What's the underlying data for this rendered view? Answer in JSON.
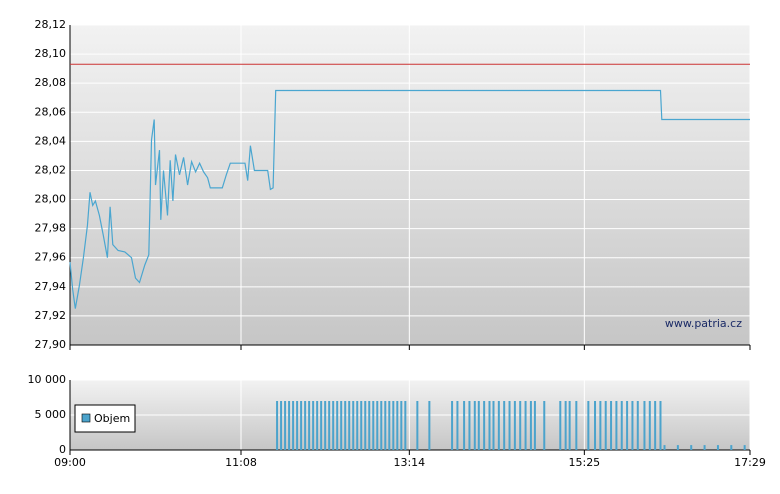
{
  "chart_data": [
    {
      "type": "line",
      "annotations": [
        "www.patria.cz"
      ],
      "x": [
        "09:00",
        "09:02",
        "09:04",
        "09:07",
        "09:10",
        "09:13",
        "09:15",
        "09:17",
        "09:19",
        "09:22",
        "09:25",
        "09:28",
        "09:30",
        "09:32",
        "09:36",
        "09:41",
        "09:46",
        "09:49",
        "09:52",
        "09:56",
        "09:59",
        "10:01",
        "10:03",
        "10:04",
        "10:07",
        "10:08",
        "10:10",
        "10:13",
        "10:15",
        "10:17",
        "10:19",
        "10:22",
        "10:25",
        "10:28",
        "10:31",
        "10:34",
        "10:37",
        "10:40",
        "10:43",
        "10:45",
        "10:54",
        "10:57",
        "11:00",
        "11:11",
        "11:13",
        "11:15",
        "11:18",
        "11:28",
        "11:30",
        "11:32",
        "11:34",
        "16:22",
        "16:23",
        "17:29"
      ],
      "values": [
        27.957,
        27.938,
        27.925,
        27.941,
        27.96,
        27.982,
        28.005,
        27.996,
        27.999,
        27.989,
        27.975,
        27.96,
        27.995,
        27.969,
        27.965,
        27.964,
        27.96,
        27.946,
        27.943,
        27.955,
        27.962,
        28.041,
        28.055,
        28.01,
        28.034,
        27.986,
        28.02,
        27.989,
        28.027,
        27.999,
        28.031,
        28.017,
        28.029,
        28.01,
        28.026,
        28.019,
        28.025,
        28.019,
        28.015,
        28.008,
        28.008,
        28.017,
        28.025,
        28.025,
        28.013,
        28.037,
        28.02,
        28.02,
        28.007,
        28.008,
        28.075,
        28.075,
        28.055,
        28.055
      ],
      "color": "#4aa6d0",
      "reference_line": 28.093,
      "reference_color": "#cc3333",
      "xlim": [
        "09:00",
        "17:29"
      ],
      "xticks": [
        "09:00",
        "11:08",
        "13:14",
        "15:25",
        "17:29"
      ],
      "ylim": [
        27.9,
        28.12
      ],
      "yticks": [
        {
          "value": 27.9,
          "label": "27,90"
        },
        {
          "value": 27.92,
          "label": "27,92"
        },
        {
          "value": 27.94,
          "label": "27,94"
        },
        {
          "value": 27.96,
          "label": "27,96"
        },
        {
          "value": 27.98,
          "label": "27,98"
        },
        {
          "value": 28.0,
          "label": "28,00"
        },
        {
          "value": 28.02,
          "label": "28,02"
        },
        {
          "value": 28.04,
          "label": "28,04"
        },
        {
          "value": 28.06,
          "label": "28,06"
        },
        {
          "value": 28.08,
          "label": "28,08"
        },
        {
          "value": 28.1,
          "label": "28,10"
        },
        {
          "value": 28.12,
          "label": "28,12"
        }
      ],
      "grid": true
    },
    {
      "type": "bar",
      "x": [
        "11:35",
        "11:38",
        "11:41",
        "11:44",
        "11:47",
        "11:50",
        "11:53",
        "11:56",
        "11:59",
        "12:02",
        "12:05",
        "12:08",
        "12:11",
        "12:14",
        "12:17",
        "12:20",
        "12:23",
        "12:26",
        "12:29",
        "12:32",
        "12:35",
        "12:38",
        "12:41",
        "12:44",
        "12:47",
        "12:50",
        "12:53",
        "12:56",
        "12:59",
        "13:02",
        "13:05",
        "13:08",
        "13:11",
        "13:20",
        "13:29",
        "13:46",
        "13:50",
        "13:55",
        "13:59",
        "14:03",
        "14:06",
        "14:10",
        "14:14",
        "14:17",
        "14:21",
        "14:25",
        "14:29",
        "14:33",
        "14:37",
        "14:41",
        "14:45",
        "14:48",
        "14:55",
        "15:07",
        "15:11",
        "15:14",
        "15:19",
        "15:28",
        "15:33",
        "15:37",
        "15:41",
        "15:45",
        "15:49",
        "15:53",
        "15:57",
        "16:01",
        "16:05",
        "16:10",
        "16:14",
        "16:18",
        "16:22",
        "16:25",
        "16:35",
        "16:45",
        "16:55",
        "17:05",
        "17:15",
        "17:25"
      ],
      "series": [
        {
          "name": "Objem",
          "color": "#4ba3cc",
          "values": [
            7000,
            7000,
            7000,
            7000,
            7000,
            7000,
            7000,
            7000,
            7000,
            7000,
            7000,
            7000,
            7000,
            7000,
            7000,
            7000,
            7000,
            7000,
            7000,
            7000,
            7000,
            7000,
            7000,
            7000,
            7000,
            7000,
            7000,
            7000,
            7000,
            7000,
            7000,
            7000,
            7000,
            7000,
            7000,
            7000,
            7000,
            7000,
            7000,
            7000,
            7000,
            7000,
            7000,
            7000,
            7000,
            7000,
            7000,
            7000,
            7000,
            7000,
            7000,
            7000,
            7000,
            7000,
            7000,
            7000,
            7000,
            7000,
            7000,
            7000,
            7000,
            7000,
            7000,
            7000,
            7000,
            7000,
            7000,
            7000,
            7000,
            7000,
            7000,
            700,
            700,
            700,
            700,
            700,
            700,
            700
          ]
        }
      ],
      "xlim": [
        "09:00",
        "17:29"
      ],
      "xticks": [
        "09:00",
        "11:08",
        "13:14",
        "15:25",
        "17:29"
      ],
      "ylim": [
        0,
        10000
      ],
      "yticks": [
        0,
        {
          "value": 5000,
          "label": "5 000"
        },
        {
          "value": 10000,
          "label": "10 000"
        }
      ],
      "grid": true
    }
  ]
}
